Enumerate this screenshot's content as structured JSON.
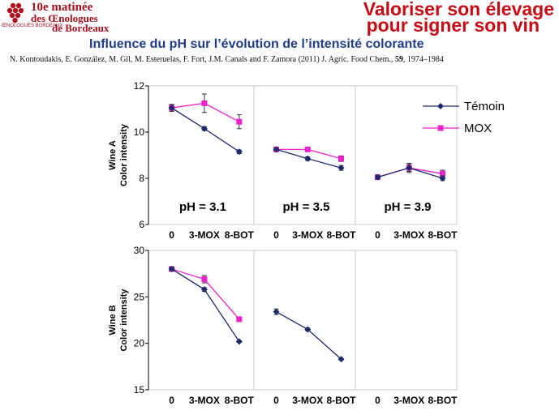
{
  "header": {
    "logo_line1": "10e matinée",
    "logo_line2": "des Œnologues",
    "logo_line3": "de Bordeaux",
    "logo_sub": "ŒNOLOGUES BORDEAUX",
    "slogan_line1": "Valoriser son élevage",
    "slogan_line2": "pour signer son vin",
    "brand_color": "#c80a14"
  },
  "slide": {
    "title": "Influence du pH sur l’évolution de l’intensité colorante",
    "citation_text": "N. Kontoudakis, E. González, M. Gil, M. Esteruelas, F. Fort, J.M. Canals and F. Zamora (2011) J. Agric. Food Chem., ",
    "citation_volume": "59",
    "citation_pages": ", 1974–1984"
  },
  "chart_data": {
    "type": "line",
    "categories": [
      "0",
      "3-MOX",
      "8-BOT"
    ],
    "legend": {
      "position": "top-right",
      "items": [
        {
          "label": "Témoin",
          "color": "#1a2a6c",
          "marker": "diamond"
        },
        {
          "label": "MOX",
          "color": "#ee22cc",
          "marker": "square"
        }
      ]
    },
    "grid": false,
    "rows": [
      {
        "ylabel_line1": "Wine A",
        "ylabel_line2": "Color intensity",
        "ylim": [
          6,
          12
        ],
        "yticks": [
          "6",
          "8",
          "10",
          "12"
        ],
        "panels": [
          {
            "annotation": "pH = 3.1",
            "series": [
              {
                "name": "Témoin",
                "values": [
                  11.05,
                  10.15,
                  9.15
                ],
                "errors": [
                  0.15,
                  0.08,
                  0.08
                ]
              },
              {
                "name": "MOX",
                "values": [
                  11.05,
                  11.25,
                  10.45
                ],
                "errors": [
                  0.15,
                  0.4,
                  0.3
                ]
              }
            ]
          },
          {
            "annotation": "pH = 3.5",
            "series": [
              {
                "name": "Témoin",
                "values": [
                  9.25,
                  8.85,
                  8.45
                ],
                "errors": [
                  0.05,
                  0.08,
                  0.1
                ]
              },
              {
                "name": "MOX",
                "values": [
                  9.25,
                  9.25,
                  8.85
                ],
                "errors": [
                  0.05,
                  0.08,
                  0.12
                ]
              }
            ]
          },
          {
            "annotation": "pH = 3.9",
            "series": [
              {
                "name": "Témoin",
                "values": [
                  8.05,
                  8.45,
                  8.0
                ],
                "errors": [
                  0.08,
                  0.2,
                  0.1
                ]
              },
              {
                "name": "MOX",
                "values": [
                  8.05,
                  8.45,
                  8.2
                ],
                "errors": [
                  0.08,
                  0.15,
                  0.15
                ]
              }
            ]
          }
        ]
      },
      {
        "ylabel_line1": "Wine B",
        "ylabel_line2": "Color intensity",
        "ylim": [
          15,
          30
        ],
        "yticks": [
          "15",
          "20",
          "25",
          "30"
        ],
        "panels": [
          {
            "annotation": "",
            "series": [
              {
                "name": "Témoin",
                "values": [
                  28.0,
                  25.8,
                  20.2
                ],
                "errors": [
                  0.2,
                  0.2,
                  0.1
                ]
              },
              {
                "name": "MOX",
                "values": [
                  28.0,
                  26.9,
                  22.6
                ],
                "errors": [
                  0.2,
                  0.4,
                  0.2
                ]
              }
            ]
          },
          {
            "annotation": "",
            "series": [
              {
                "name": "Témoin",
                "values": [
                  23.4,
                  21.5,
                  18.3
                ],
                "errors": [
                  0.3,
                  0.15,
                  0.1
                ]
              }
            ]
          },
          {
            "annotation": "",
            "series": []
          }
        ]
      }
    ]
  }
}
